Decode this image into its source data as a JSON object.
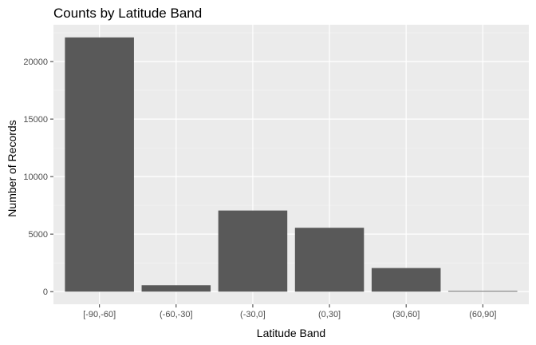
{
  "chart_data": {
    "type": "bar",
    "title": "Counts by Latitude Band",
    "xlabel": "Latitude Band",
    "ylabel": "Number of Records",
    "categories": [
      "[-90,-60]",
      "(-60,-30]",
      "(-30,0]",
      "(0,30]",
      "(30,60]",
      "(60,90]"
    ],
    "values": [
      22100,
      550,
      7050,
      5550,
      2050,
      60
    ],
    "ylim": [
      -1100,
      23200
    ],
    "yticks": [
      0,
      5000,
      10000,
      15000,
      20000
    ],
    "ytick_labels": [
      "0",
      "5000",
      "10000",
      "15000",
      "20000"
    ],
    "grid": true,
    "legend": "none",
    "colors": {
      "panel": "#EBEBEB",
      "grid_major": "#FFFFFF",
      "grid_minor": "#F5F5F5",
      "bar": "#595959",
      "tick": "#333333"
    }
  }
}
